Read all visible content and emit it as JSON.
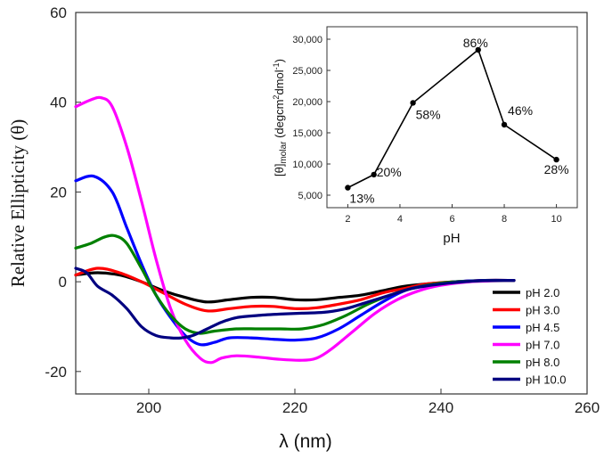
{
  "chart_data": [
    {
      "type": "line",
      "xlabel": "λ (nm)",
      "ylabel": "Relative Ellipticity (θ)",
      "xlim": [
        190,
        260
      ],
      "ylim": [
        -25,
        60
      ],
      "xticks": [
        200,
        220,
        240,
        260
      ],
      "yticks": [
        -20,
        0,
        20,
        40,
        60
      ],
      "legend": "bottom-right",
      "series": [
        {
          "name": "pH 2.0",
          "color": "#000000",
          "x": [
            190,
            193,
            196,
            199,
            202,
            205,
            208,
            211,
            214,
            217,
            220,
            223,
            226,
            229,
            232,
            235,
            238,
            242,
            246,
            250
          ],
          "y": [
            1.5,
            2,
            1.5,
            0,
            -2,
            -3.5,
            -4.5,
            -4,
            -3.5,
            -3.5,
            -4,
            -4,
            -3.5,
            -3,
            -2,
            -1,
            -0.5,
            0,
            0.3,
            0.3
          ]
        },
        {
          "name": "pH 3.0",
          "color": "#ff0000",
          "x": [
            190,
            193,
            196,
            199,
            202,
            205,
            208,
            211,
            214,
            217,
            220,
            223,
            226,
            229,
            232,
            235,
            238,
            242,
            246,
            250
          ],
          "y": [
            1.5,
            3,
            2,
            0,
            -2.5,
            -5,
            -6.5,
            -6,
            -5.5,
            -5.5,
            -6,
            -5.8,
            -5,
            -4,
            -2.5,
            -1.5,
            -0.5,
            0,
            0.3,
            0.3
          ]
        },
        {
          "name": "pH 4.5",
          "color": "#0000ff",
          "x": [
            190,
            192.5,
            195,
            197,
            199,
            201,
            203,
            205,
            207,
            209,
            211,
            214,
            217,
            220,
            223,
            226,
            229,
            232,
            235,
            238,
            242,
            246,
            250
          ],
          "y": [
            22.5,
            23.5,
            20,
            12,
            4,
            -3,
            -8,
            -12,
            -14,
            -13.5,
            -12.5,
            -12.5,
            -12.8,
            -13,
            -12.5,
            -10.5,
            -7.5,
            -4.5,
            -2,
            -0.8,
            0,
            0.3,
            0.3
          ]
        },
        {
          "name": "pH 7.0",
          "color": "#ff00ff",
          "x": [
            190,
            192,
            193.5,
            195,
            197,
            199,
            201,
            203,
            205,
            207,
            208.5,
            210,
            212,
            215,
            218,
            221,
            223,
            225,
            228,
            231,
            234,
            237,
            240,
            244,
            250
          ],
          "y": [
            39,
            40.5,
            41,
            39,
            30,
            18,
            5,
            -6,
            -13,
            -17,
            -18,
            -17,
            -16.5,
            -16.8,
            -17.3,
            -17.5,
            -17,
            -15,
            -11,
            -7,
            -4,
            -2,
            -0.8,
            0,
            0.3
          ]
        },
        {
          "name": "pH 8.0",
          "color": "#008000",
          "x": [
            190,
            192,
            194,
            195.5,
            197,
            199,
            201,
            203,
            205,
            207,
            209,
            212,
            215,
            218,
            221,
            224,
            227,
            230,
            233,
            236,
            240,
            245,
            250
          ],
          "y": [
            7.5,
            8.5,
            10,
            10.2,
            8.5,
            3,
            -3,
            -7.5,
            -10.5,
            -11.5,
            -11,
            -10.5,
            -10.5,
            -10.5,
            -10.5,
            -9.5,
            -7.5,
            -5,
            -3,
            -1.5,
            -0.3,
            0.2,
            0.3
          ]
        },
        {
          "name": "pH 10.0",
          "color": "#000080",
          "x": [
            190,
            191.5,
            193,
            195,
            197,
            199,
            201,
            203,
            204.5,
            206,
            208,
            210,
            212,
            215,
            218,
            221,
            224,
            227,
            230,
            233,
            236,
            240,
            245,
            250
          ],
          "y": [
            3,
            2,
            -1,
            -3,
            -6,
            -10,
            -12,
            -12.5,
            -12.5,
            -12,
            -10.5,
            -9,
            -8,
            -7.5,
            -7.2,
            -7,
            -6.8,
            -6,
            -4.5,
            -3,
            -1.5,
            -0.5,
            0.2,
            0.3
          ]
        }
      ]
    },
    {
      "type": "line",
      "xlabel": "pH",
      "ylabel": "[θ]molar (degcm²dmol⁻¹)",
      "ylabel_main": "[θ]",
      "ylabel_sub": "molar",
      "ylabel_unit": " (degcm",
      "ylabel_sup1": "2",
      "ylabel_unit2": "dmol",
      "ylabel_sup2": "-1",
      "ylabel_close": ")",
      "xlim": [
        1.2,
        10.8
      ],
      "ylim": [
        3000,
        32000
      ],
      "xticks": [
        2,
        4,
        6,
        8,
        10
      ],
      "yticks": [
        5000,
        10000,
        15000,
        20000,
        25000,
        30000
      ],
      "ytick_labels": [
        "5,000",
        "10,000",
        "15,000",
        "20,000",
        "25,000",
        "30,000"
      ],
      "x": [
        2,
        3,
        4.5,
        7,
        8,
        10
      ],
      "y": [
        6200,
        8300,
        19800,
        28300,
        16300,
        10700
      ],
      "point_labels": [
        "13%",
        "20%",
        "58%",
        "86%",
        "46%",
        "28%"
      ]
    }
  ]
}
